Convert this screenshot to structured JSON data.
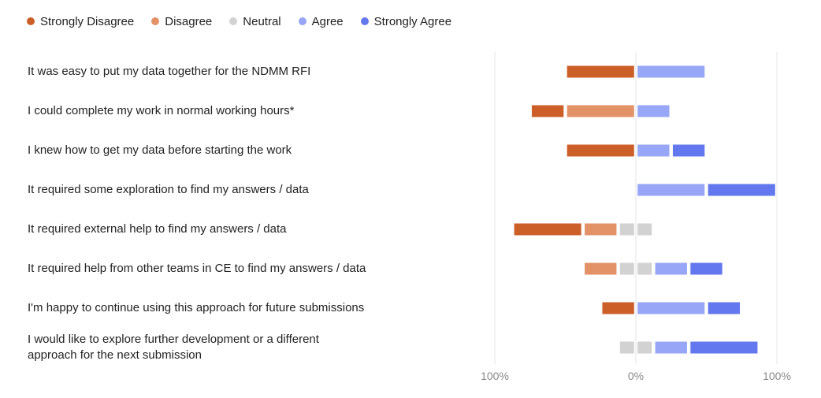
{
  "chart_data": {
    "type": "diverging-stacked-bar",
    "legend_position": "top-left",
    "legend": [
      {
        "key": "sd",
        "label": "Strongly Disagree",
        "color": "#cc5e28"
      },
      {
        "key": "d",
        "label": "Disagree",
        "color": "#e39167"
      },
      {
        "key": "n",
        "label": "Neutral",
        "color": "#d2d2d2"
      },
      {
        "key": "a",
        "label": "Agree",
        "color": "#97a6f6"
      },
      {
        "key": "sa",
        "label": "Strongly Agree",
        "color": "#6377ee"
      }
    ],
    "categories": [
      "It was easy to put my data together for the NDMM RFI",
      "I could complete my work in normal working hours*",
      "I knew how to get my data before starting the work",
      "It required some exploration to find my answers / data",
      "It required external help to find my answers / data",
      "It required help from other teams in CE to find my answers / data",
      "I'm happy to continue using this approach for future submissions",
      "I would like to explore further development or a different approach for the next submission"
    ],
    "series": [
      {
        "name": "Strongly Disagree",
        "values": [
          50,
          25,
          50,
          0,
          50,
          0,
          25,
          0
        ]
      },
      {
        "name": "Disagree",
        "values": [
          0,
          50,
          0,
          0,
          25,
          25,
          0,
          0
        ]
      },
      {
        "name": "Neutral",
        "values": [
          0,
          0,
          0,
          0,
          25,
          25,
          0,
          25
        ]
      },
      {
        "name": "Agree",
        "values": [
          50,
          25,
          25,
          50,
          0,
          25,
          50,
          25
        ]
      },
      {
        "name": "Strongly Agree",
        "values": [
          0,
          0,
          25,
          50,
          0,
          25,
          25,
          50
        ]
      }
    ],
    "xlim": [
      -100,
      100
    ],
    "x_ticks": [
      "100%",
      "0%",
      "100%"
    ],
    "grid": true
  }
}
